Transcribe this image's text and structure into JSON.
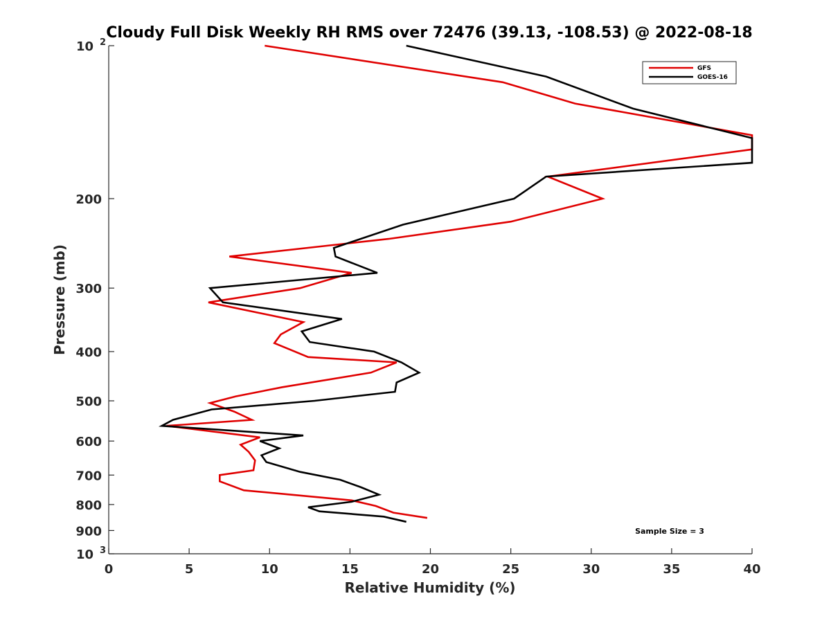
{
  "chart_data": {
    "type": "line",
    "title": "Cloudy Full Disk Weekly RH RMS over 72476 (39.13, -108.53) @ 2022-08-18",
    "xlabel": "Relative Humidity (%)",
    "ylabel": "Pressure (mb)",
    "xlim": [
      0,
      40
    ],
    "ylim": [
      100,
      1000
    ],
    "y_scale": "log",
    "y_reversed": true,
    "grid": false,
    "legend_position": "top-right",
    "x_ticks": [
      0,
      5,
      10,
      15,
      20,
      25,
      30,
      35,
      40
    ],
    "y_ticks": [
      {
        "value": 100,
        "label": "10",
        "exp": "2"
      },
      {
        "value": 200,
        "label": "200"
      },
      {
        "value": 300,
        "label": "300"
      },
      {
        "value": 400,
        "label": "400"
      },
      {
        "value": 500,
        "label": "500"
      },
      {
        "value": 600,
        "label": "600"
      },
      {
        "value": 700,
        "label": "700"
      },
      {
        "value": 800,
        "label": "800"
      },
      {
        "value": 900,
        "label": "900"
      },
      {
        "value": 1000,
        "label": "10",
        "exp": "3"
      }
    ],
    "annotation": "Sample Size = 3",
    "series": [
      {
        "name": "GFS",
        "color": "#e00000",
        "points": [
          [
            9.7,
            100
          ],
          [
            24.5,
            118
          ],
          [
            29.0,
            130
          ],
          [
            40.0,
            150
          ],
          [
            40.0,
            160
          ],
          [
            27.3,
            181
          ],
          [
            30.7,
            200
          ],
          [
            25.0,
            222
          ],
          [
            17.4,
            240
          ],
          [
            7.5,
            260
          ],
          [
            15.1,
            280
          ],
          [
            11.9,
            300
          ],
          [
            6.2,
            320
          ],
          [
            12.1,
            350
          ],
          [
            10.7,
            370
          ],
          [
            10.3,
            385
          ],
          [
            12.4,
            410
          ],
          [
            17.9,
            420
          ],
          [
            16.3,
            440
          ],
          [
            10.8,
            470
          ],
          [
            7.9,
            490
          ],
          [
            6.3,
            505
          ],
          [
            7.8,
            525
          ],
          [
            8.9,
            545
          ],
          [
            3.6,
            560
          ],
          [
            9.4,
            590
          ],
          [
            8.2,
            610
          ],
          [
            8.7,
            630
          ],
          [
            9.1,
            655
          ],
          [
            9.0,
            685
          ],
          [
            6.9,
            700
          ],
          [
            6.9,
            720
          ],
          [
            8.4,
            750
          ],
          [
            15.1,
            785
          ],
          [
            16.6,
            805
          ],
          [
            17.7,
            830
          ],
          [
            19.8,
            850
          ]
        ]
      },
      {
        "name": "GOES-16",
        "color": "#000000",
        "points": [
          [
            18.5,
            100
          ],
          [
            27.2,
            115
          ],
          [
            32.6,
            133
          ],
          [
            40.0,
            152
          ],
          [
            40.0,
            170
          ],
          [
            27.2,
            181
          ],
          [
            25.2,
            200
          ],
          [
            18.3,
            225
          ],
          [
            14.0,
            250
          ],
          [
            14.1,
            260
          ],
          [
            16.7,
            280
          ],
          [
            6.3,
            300
          ],
          [
            7.1,
            320
          ],
          [
            14.5,
            345
          ],
          [
            12.0,
            365
          ],
          [
            12.5,
            383
          ],
          [
            16.5,
            400
          ],
          [
            18.2,
            420
          ],
          [
            19.3,
            440
          ],
          [
            17.9,
            460
          ],
          [
            17.8,
            480
          ],
          [
            12.8,
            500
          ],
          [
            6.4,
            520
          ],
          [
            4.0,
            545
          ],
          [
            3.3,
            560
          ],
          [
            12.1,
            585
          ],
          [
            9.4,
            600
          ],
          [
            10.6,
            620
          ],
          [
            9.5,
            640
          ],
          [
            9.8,
            660
          ],
          [
            11.9,
            690
          ],
          [
            14.4,
            715
          ],
          [
            15.7,
            740
          ],
          [
            16.8,
            765
          ],
          [
            15.1,
            790
          ],
          [
            12.4,
            810
          ],
          [
            13.1,
            825
          ],
          [
            17.1,
            845
          ],
          [
            18.5,
            865
          ]
        ]
      }
    ]
  }
}
